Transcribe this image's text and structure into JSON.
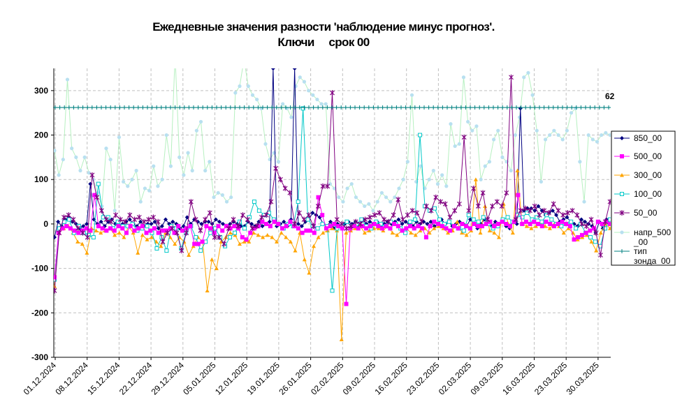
{
  "title": {
    "line1": "Ежедневные значения разности 'наблюдение минус прогноз'.",
    "line2": "Ключи     срок 00"
  },
  "chart_data": {
    "type": "line",
    "x_labels": [
      "01.12.2024",
      "08.12.2024",
      "15.12.2024",
      "22.12.2024",
      "29.12.2024",
      "05.01.2025",
      "12.01.2025",
      "19.01.2025",
      "26.01.2025",
      "02.02.2025",
      "09.02.2025",
      "16.02.2025",
      "23.02.2025",
      "02.03.2025",
      "09.03.2025",
      "16.03.2025",
      "23.03.2025",
      "30.03.2025"
    ],
    "ylim": [
      -300,
      350
    ],
    "yticks": [
      -300,
      -200,
      -100,
      0,
      100,
      200,
      300
    ],
    "grid": true,
    "legend_position": "right",
    "annotation": "62",
    "series": [
      {
        "name": "850_00",
        "color": "#000080",
        "marker": "diamond",
        "values": [
          -30,
          5,
          -5,
          10,
          15,
          5,
          0,
          -10,
          -5,
          0,
          90,
          10,
          0,
          5,
          -5,
          5,
          10,
          0,
          -5,
          0,
          5,
          10,
          0,
          -5,
          5,
          -5,
          0,
          0,
          5,
          -10,
          -5,
          10,
          0,
          5,
          0,
          -10,
          -5,
          15,
          0,
          10,
          5,
          0,
          5,
          5,
          0,
          10,
          5,
          0,
          -5,
          0,
          5,
          0,
          -5,
          -5,
          5,
          0,
          -5,
          5,
          -5,
          0,
          5,
          350,
          -5,
          0,
          5,
          -5,
          10,
          350,
          0,
          -5,
          5,
          10,
          25,
          20,
          15,
          0,
          -5,
          5,
          -10,
          0,
          -5,
          0,
          5,
          0,
          5,
          -5,
          10,
          0,
          5,
          0,
          5,
          -5,
          0,
          5,
          0,
          5,
          10,
          0,
          5,
          0,
          -5,
          5,
          0,
          5,
          0,
          5,
          -5,
          0,
          10,
          0,
          5,
          -5,
          0,
          5,
          0,
          -5,
          10,
          0,
          -10,
          0,
          10,
          0,
          -5,
          5,
          0,
          5,
          -5,
          -10,
          5,
          0,
          260,
          30,
          35,
          35,
          30,
          40,
          30,
          20,
          25,
          30,
          20,
          5,
          10,
          15,
          5,
          0,
          -5,
          10,
          5,
          0,
          -5,
          -20,
          5,
          -10,
          10,
          0
        ]
      },
      {
        "name": "500_00",
        "color": "#ff00ff",
        "marker": "square",
        "values": [
          -120,
          -20,
          -10,
          -5,
          -10,
          -15,
          -20,
          -15,
          -10,
          -15,
          65,
          -5,
          -10,
          -15,
          -10,
          -15,
          -5,
          -10,
          -20,
          -5,
          -15,
          -10,
          -5,
          -20,
          -15,
          -10,
          -20,
          -15,
          -15,
          -10,
          -20,
          -5,
          -15,
          -10,
          -5,
          -45,
          -45,
          -40,
          -5,
          -10,
          -20,
          -5,
          -15,
          -5,
          -10,
          -5,
          -10,
          -30,
          -35,
          -20,
          -10,
          -5,
          5,
          0,
          -5,
          5,
          0,
          -10,
          -5,
          5,
          -5,
          -10,
          -20,
          -15,
          -15,
          -20,
          60,
          20,
          -10,
          -5,
          0,
          -5,
          -10,
          -180,
          -10,
          -5,
          -10,
          -5,
          -10,
          -5,
          0,
          -5,
          -10,
          -5,
          -10,
          0,
          -5,
          -15,
          -10,
          -5,
          -10,
          -5,
          -10,
          -30,
          -5,
          5,
          0,
          -5,
          -10,
          -15,
          -5,
          -10,
          0,
          -5,
          -10,
          0,
          -5,
          -5,
          0,
          5,
          -5,
          0,
          5,
          0,
          -5,
          5,
          65,
          0,
          5,
          0,
          5,
          0,
          -5,
          5,
          0,
          -5,
          0,
          5,
          0,
          -5,
          -35,
          -30,
          -25,
          -20,
          -15,
          -10,
          5,
          0,
          5,
          0
        ]
      },
      {
        "name": "300_00",
        "color": "#ffa500",
        "marker": "triangle",
        "values": [
          -140,
          -20,
          -10,
          -5,
          -20,
          -40,
          -45,
          -65,
          -10,
          -15,
          -20,
          -15,
          -10,
          -25,
          -20,
          -30,
          -5,
          -20,
          -65,
          -25,
          -35,
          -30,
          -40,
          -50,
          -20,
          -30,
          -45,
          -30,
          -40,
          -70,
          -50,
          -30,
          -40,
          -150,
          -80,
          -100,
          -40,
          -30,
          -20,
          -25,
          -45,
          -40,
          -40,
          -20,
          -25,
          -30,
          -25,
          -30,
          -40,
          -20,
          -30,
          -40,
          -60,
          -20,
          -80,
          -110,
          -50,
          -30,
          -20,
          -15,
          -10,
          -15,
          -260,
          -20,
          -15,
          -10,
          -5,
          -20,
          -15,
          -10,
          -10,
          -15,
          -5,
          -20,
          -25,
          -15,
          -10,
          -20,
          -25,
          -15,
          -10,
          -20,
          -10,
          -5,
          -10,
          -20,
          -15,
          5,
          -20,
          -25,
          -15,
          100,
          -20,
          40,
          -15,
          -20,
          -30,
          45,
          0,
          -20,
          120,
          0,
          -5,
          -10,
          -5,
          0,
          -5,
          -10,
          0,
          -5,
          -20,
          -10,
          -20,
          -35,
          -30,
          -25,
          -40,
          -60,
          -20,
          0,
          -10
        ]
      },
      {
        "name": "100_00",
        "color": "#00c8c8",
        "marker": "open-square",
        "values": [
          -125,
          -10,
          5,
          10,
          -20,
          -5,
          -20,
          -25,
          -30,
          90,
          15,
          15,
          -10,
          5,
          -5,
          -5,
          0,
          -15,
          -10,
          -5,
          -20,
          -55,
          -30,
          -60,
          -5,
          -10,
          -55,
          -20,
          -5,
          -30,
          -60,
          -40,
          -20,
          -10,
          -30,
          -50,
          -30,
          -20,
          5,
          -10,
          15,
          50,
          30,
          20,
          25,
          10,
          0,
          -10,
          0,
          -5,
          50,
          260,
          10,
          -5,
          -10,
          0,
          -5,
          -150,
          -10,
          -5,
          5,
          -5,
          0,
          10,
          -5,
          -10,
          5,
          0,
          -5,
          5,
          0,
          -10,
          -20,
          5,
          10,
          200,
          40,
          30,
          35,
          10,
          0,
          5,
          -5,
          -10,
          -15,
          20,
          10,
          5,
          15,
          0,
          -10,
          -5,
          10,
          15,
          5,
          20,
          15,
          25,
          10,
          15,
          5,
          20,
          10,
          0,
          -5,
          0,
          5,
          -10,
          0,
          -20,
          -30,
          -40,
          -50,
          -10,
          10
        ]
      },
      {
        "name": "50_00",
        "color": "#800080",
        "marker": "star",
        "values": [
          -150,
          -20,
          15,
          20,
          10,
          -10,
          -20,
          -30,
          110,
          60,
          30,
          10,
          5,
          20,
          10,
          5,
          20,
          10,
          15,
          5,
          10,
          15,
          5,
          -40,
          -20,
          -10,
          -20,
          -60,
          -20,
          50,
          10,
          -15,
          10,
          25,
          -30,
          -30,
          -45,
          -10,
          10,
          -5,
          20,
          10,
          -10,
          -5,
          15,
          20,
          50,
          125,
          100,
          80,
          70,
          0,
          25,
          10,
          20,
          -5,
          40,
          85,
          85,
          295,
          10,
          0,
          -10,
          -5,
          5,
          0,
          10,
          15,
          20,
          25,
          10,
          5,
          20,
          55,
          10,
          20,
          30,
          25,
          5,
          40,
          30,
          60,
          50,
          45,
          15,
          30,
          45,
          195,
          30,
          80,
          40,
          70,
          10,
          40,
          50,
          40,
          70,
          330,
          10,
          30,
          35,
          30,
          40,
          20,
          30,
          25,
          45,
          30,
          20,
          25,
          30,
          20,
          0,
          -5,
          10,
          -20,
          -70,
          5,
          50
        ]
      },
      {
        "name": "напр_500_00",
        "color": "#b8e0f0",
        "marker": "dot",
        "line_color": "#b6f0c0",
        "values": [
          165,
          110,
          145,
          325,
          170,
          150,
          120,
          150,
          115,
          100,
          70,
          40,
          170,
          145,
          30,
          195,
          95,
          85,
          100,
          120,
          50,
          80,
          75,
          130,
          85,
          100,
          200,
          130,
          380,
          150,
          110,
          160,
          120,
          210,
          230,
          120,
          140,
          60,
          70,
          65,
          50,
          60,
          295,
          310,
          370,
          310,
          290,
          280,
          260,
          180,
          145,
          160,
          140,
          270,
          260,
          240,
          310,
          330,
          320,
          300,
          290,
          280,
          270,
          270,
          90,
          80,
          60,
          50,
          80,
          90,
          60,
          50,
          40,
          45,
          30,
          50,
          70,
          60,
          50,
          60,
          80,
          100,
          140,
          290,
          95,
          130,
          80,
          100,
          120,
          90,
          110,
          85,
          225,
          175,
          180,
          330,
          230,
          210,
          220,
          100,
          130,
          140,
          190,
          210,
          150,
          140,
          120,
          200,
          240,
          330,
          340,
          290,
          210,
          95,
          190,
          200,
          210,
          200,
          190,
          210,
          250,
          260,
          140,
          50,
          200,
          190,
          185,
          200,
          205,
          200
        ]
      },
      {
        "name": "тип зонда_00",
        "color": "#008080",
        "marker": "plus",
        "values": [
          262
        ]
      }
    ]
  },
  "legend": {
    "items": [
      {
        "label": "850_00"
      },
      {
        "label": "500_00"
      },
      {
        "label": "300_00"
      },
      {
        "label": "100_00"
      },
      {
        "label": "50_00"
      },
      {
        "label": "напр_500"
      },
      {
        "label": "_00"
      },
      {
        "label": "тип"
      },
      {
        "label": "зонда_00"
      }
    ]
  }
}
